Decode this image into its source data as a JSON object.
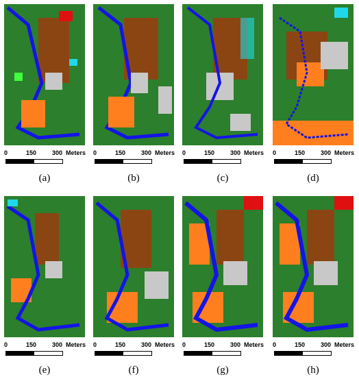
{
  "scale_bar": {
    "label_0": "0",
    "label_150": "150",
    "label_300": "300",
    "unit": "Meters"
  },
  "captions": [
    "(a)",
    "(b)",
    "(c)",
    "(d)",
    "(e)",
    "(f)",
    "(g)",
    "(h)"
  ],
  "class_colors": {
    "background": "#2c7f2c",
    "roads": "#1414e6",
    "buildings": "#8b4513",
    "roofs": "#ff7f1f",
    "bare": "#c8c8c8",
    "red": "#e01010",
    "cyan": "#20d8e8",
    "lime": "#40ff40",
    "yellow": "#ffff00"
  }
}
